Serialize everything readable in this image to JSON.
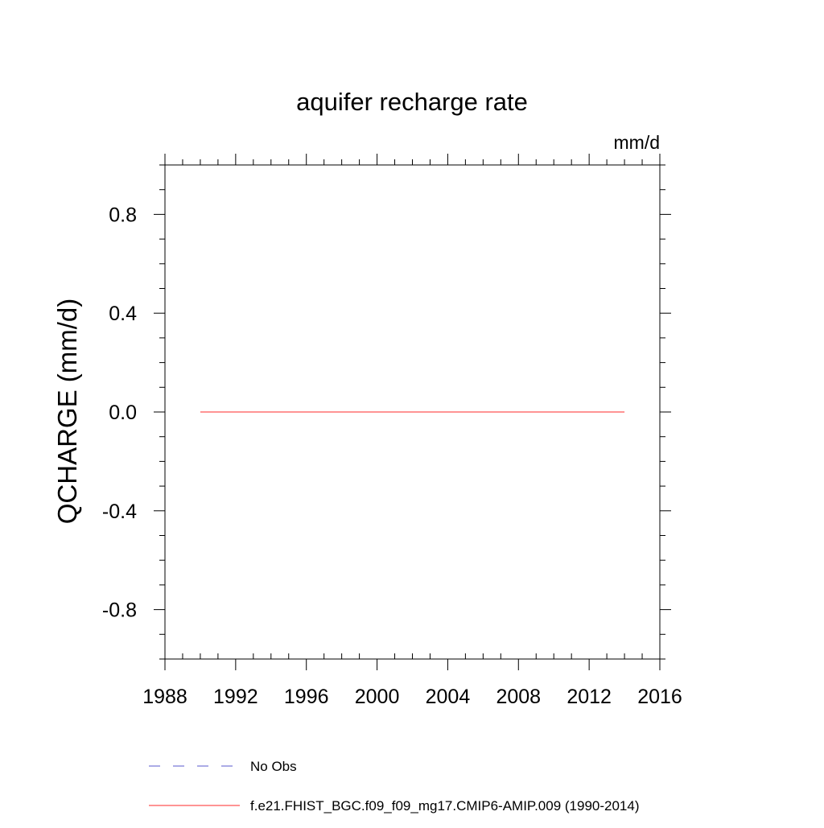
{
  "chart_data": {
    "type": "line",
    "title": "aquifer recharge rate",
    "units": "mm/d",
    "ylabel": "QCHARGE  (mm/d)",
    "xlabel": "",
    "xlim": [
      1988,
      2016
    ],
    "ylim": [
      -1.0,
      1.0
    ],
    "x_major_ticks": [
      1988,
      1992,
      1996,
      2000,
      2004,
      2008,
      2012,
      2016
    ],
    "x_minor_step": 1,
    "y_major_ticks": [
      -0.8,
      -0.4,
      0.0,
      0.4,
      0.8
    ],
    "y_tick_labels": [
      "-0.8",
      "-0.4",
      "0.0",
      "0.4",
      "0.8"
    ],
    "y_minor_step": 0.1,
    "grid": false,
    "legend_position": "bottom",
    "series": [
      {
        "name": "No Obs",
        "color": "#7b7bd6",
        "dash": "dashed",
        "x": [],
        "y": []
      },
      {
        "name": "f.e21.FHIST_BGC.f09_f09_mg17.CMIP6-AMIP.009 (1990-2014)",
        "color": "#ff5555",
        "dash": "solid",
        "x": [
          1990,
          1991,
          1992,
          1993,
          1994,
          1995,
          1996,
          1997,
          1998,
          1999,
          2000,
          2001,
          2002,
          2003,
          2004,
          2005,
          2006,
          2007,
          2008,
          2009,
          2010,
          2011,
          2012,
          2013,
          2014
        ],
        "y": [
          0.0,
          0.0,
          0.0,
          0.0,
          0.0,
          0.0,
          0.0,
          0.0,
          0.0,
          0.0,
          0.0,
          0.0,
          0.0,
          0.0,
          0.0,
          0.0,
          0.0,
          0.0,
          0.0,
          0.0,
          0.0,
          0.0,
          0.0,
          0.0,
          0.0
        ]
      }
    ]
  }
}
